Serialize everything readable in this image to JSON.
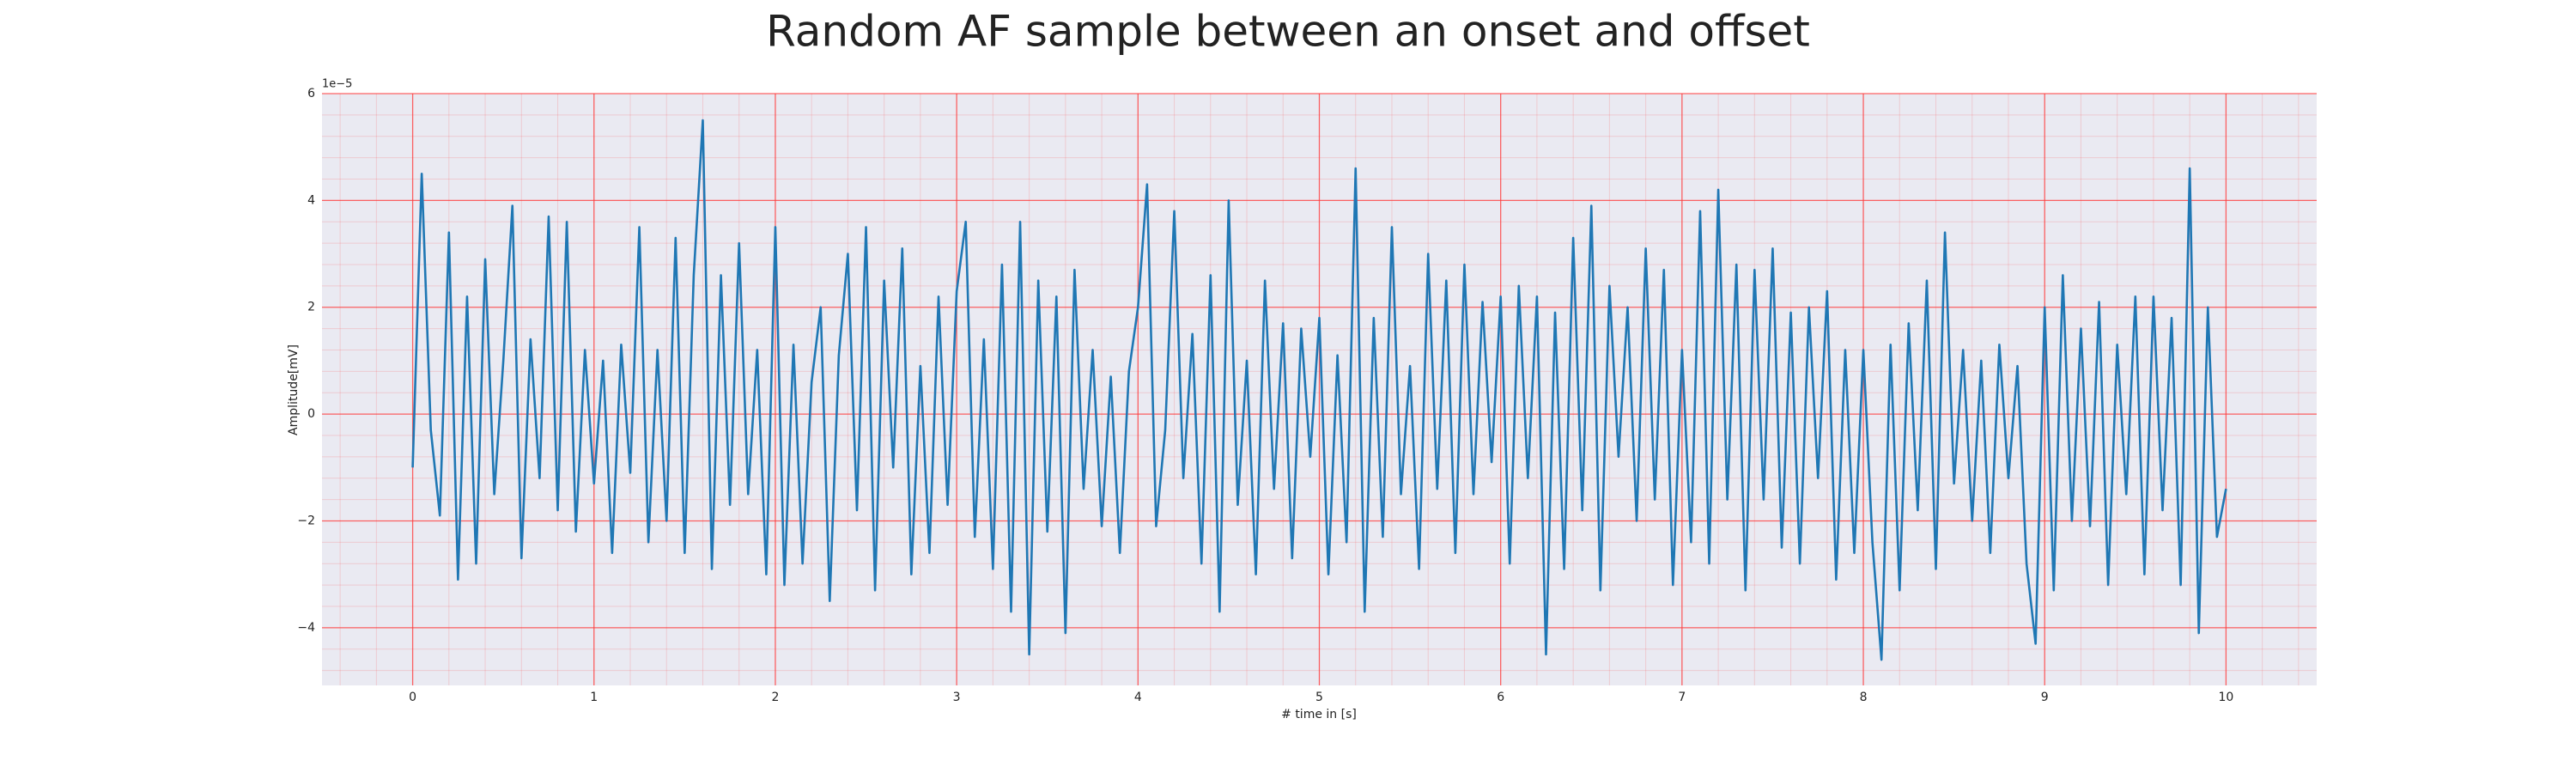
{
  "chart_data": {
    "type": "line",
    "title": "Random AF sample between an onset and offset",
    "xlabel": "# time in [s]",
    "ylabel": "Amplitude[mV]",
    "y_offset_label": "1e−5",
    "xlim": [
      -0.5,
      10.5
    ],
    "ylim": [
      -5.08,
      6
    ],
    "xticks": [
      0,
      1,
      2,
      3,
      4,
      5,
      6,
      7,
      8,
      9,
      10
    ],
    "yticks": [
      {
        "value": -4,
        "label": "−4"
      },
      {
        "value": -2,
        "label": "−2"
      },
      0,
      2,
      4,
      6
    ],
    "grid": true,
    "grid_color": "#ff3b3b",
    "minor_grid": true,
    "minor_divisions": 5,
    "background": "#eaeaf2",
    "x": [
      0,
      0.05,
      0.1,
      0.15,
      0.2,
      0.25,
      0.3,
      0.35,
      0.4,
      0.45,
      0.5,
      0.55,
      0.6,
      0.65,
      0.7,
      0.75,
      0.8,
      0.85,
      0.9,
      0.95,
      1,
      1.05,
      1.1,
      1.15,
      1.2,
      1.25,
      1.3,
      1.35,
      1.4,
      1.45,
      1.5,
      1.55,
      1.6,
      1.65,
      1.7,
      1.75,
      1.8,
      1.85,
      1.9,
      1.95,
      2,
      2.05,
      2.1,
      2.15,
      2.2,
      2.25,
      2.3,
      2.35,
      2.4,
      2.45,
      2.5,
      2.55,
      2.6,
      2.65,
      2.7,
      2.75,
      2.8,
      2.85,
      2.9,
      2.95,
      3,
      3.05,
      3.1,
      3.15,
      3.2,
      3.25,
      3.3,
      3.35,
      3.4,
      3.45,
      3.5,
      3.55,
      3.6,
      3.65,
      3.7,
      3.75,
      3.8,
      3.85,
      3.9,
      3.95,
      4,
      4.05,
      4.1,
      4.15,
      4.2,
      4.25,
      4.3,
      4.35,
      4.4,
      4.45,
      4.5,
      4.55,
      4.6,
      4.65,
      4.7,
      4.75,
      4.8,
      4.85,
      4.9,
      4.95,
      5,
      5.05,
      5.1,
      5.15,
      5.2,
      5.25,
      5.3,
      5.35,
      5.4,
      5.45,
      5.5,
      5.55,
      5.6,
      5.65,
      5.7,
      5.75,
      5.8,
      5.85,
      5.9,
      5.95,
      6,
      6.05,
      6.1,
      6.15,
      6.2,
      6.25,
      6.3,
      6.35,
      6.4,
      6.45,
      6.5,
      6.55,
      6.6,
      6.65,
      6.7,
      6.75,
      6.8,
      6.85,
      6.9,
      6.95,
      7,
      7.05,
      7.1,
      7.15,
      7.2,
      7.25,
      7.3,
      7.35,
      7.4,
      7.45,
      7.5,
      7.55,
      7.6,
      7.65,
      7.7,
      7.75,
      7.8,
      7.85,
      7.9,
      7.95,
      8,
      8.05,
      8.1,
      8.15,
      8.2,
      8.25,
      8.3,
      8.35,
      8.4,
      8.45,
      8.5,
      8.55,
      8.6,
      8.65,
      8.7,
      8.75,
      8.8,
      8.85,
      8.9,
      8.95,
      9,
      9.05,
      9.1,
      9.15,
      9.2,
      9.25,
      9.3,
      9.35,
      9.4,
      9.45,
      9.5,
      9.55,
      9.6,
      9.65,
      9.7,
      9.75,
      9.8,
      9.85,
      9.9,
      9.95,
      10
    ],
    "series": [
      {
        "color": "#1f77b4",
        "values": [
          -1.0,
          4.5,
          -0.3,
          -1.9,
          3.4,
          -3.1,
          2.2,
          -2.8,
          2.9,
          -1.5,
          1.0,
          3.9,
          -2.7,
          1.4,
          -1.2,
          3.7,
          -1.8,
          3.6,
          -2.2,
          1.2,
          -1.3,
          1.0,
          -2.6,
          1.3,
          -1.1,
          3.5,
          -2.4,
          1.2,
          -2.0,
          3.3,
          -2.6,
          2.6,
          5.5,
          -2.9,
          2.6,
          -1.7,
          3.2,
          -1.5,
          1.2,
          -3.0,
          3.5,
          -3.2,
          1.3,
          -2.8,
          0.6,
          2.0,
          -3.5,
          1.1,
          3.0,
          -1.8,
          3.5,
          -3.3,
          2.5,
          -1.0,
          3.1,
          -3.0,
          0.9,
          -2.6,
          2.2,
          -1.7,
          2.3,
          3.6,
          -2.3,
          1.4,
          -2.9,
          2.8,
          -3.7,
          3.6,
          -4.5,
          2.5,
          -2.2,
          2.2,
          -4.1,
          2.7,
          -1.4,
          1.2,
          -2.1,
          0.7,
          -2.6,
          0.8,
          2.0,
          4.3,
          -2.1,
          -0.3,
          3.8,
          -1.2,
          1.5,
          -2.8,
          2.6,
          -3.7,
          4.0,
          -1.7,
          1.0,
          -3.0,
          2.5,
          -1.4,
          1.7,
          -2.7,
          1.6,
          -0.8,
          1.8,
          -3.0,
          1.1,
          -2.4,
          4.6,
          -3.7,
          1.8,
          -2.3,
          3.5,
          -1.5,
          0.9,
          -2.9,
          3.0,
          -1.4,
          2.5,
          -2.6,
          2.8,
          -1.5,
          2.1,
          -0.9,
          2.2,
          -2.8,
          2.4,
          -1.2,
          2.2,
          -4.5,
          1.9,
          -2.9,
          3.3,
          -1.8,
          3.9,
          -3.3,
          2.4,
          -0.8,
          2.0,
          -2.0,
          3.1,
          -1.6,
          2.7,
          -3.2,
          1.2,
          -2.4,
          3.8,
          -2.8,
          4.2,
          -1.6,
          2.8,
          -3.3,
          2.7,
          -1.6,
          3.1,
          -2.5,
          1.9,
          -2.8,
          2.0,
          -1.2,
          2.3,
          -3.1,
          1.2,
          -2.6,
          1.2,
          -2.4,
          -4.6,
          1.3,
          -3.3,
          1.7,
          -1.8,
          2.5,
          -2.9,
          3.4,
          -1.3,
          1.2,
          -2.0,
          1.0,
          -2.6,
          1.3,
          -1.2,
          0.9,
          -2.8,
          -4.3,
          2.0,
          -3.3,
          2.6,
          -2.0,
          1.6,
          -2.1,
          2.1,
          -3.2,
          1.3,
          -1.5,
          2.2,
          -3.0,
          2.2,
          -1.8,
          1.8,
          -3.2,
          4.6,
          -4.1,
          2.0,
          -2.3,
          -1.4
        ]
      }
    ]
  }
}
